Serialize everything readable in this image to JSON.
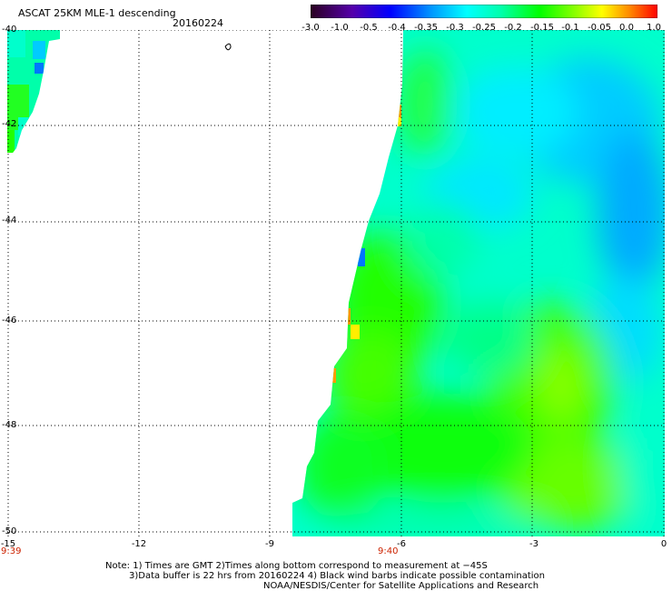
{
  "header": {
    "title": "ASCAT 25KM MLE-1 descending",
    "date": "20160224"
  },
  "colorbar": {
    "labels": [
      "-3.0",
      "-1.0",
      "-0.5",
      "-0.4",
      "-0.35",
      "-0.3",
      "-0.25",
      "-0.2",
      "-0.15",
      "-0.1",
      "-0.05",
      "0.0",
      "1.0"
    ]
  },
  "map": {
    "lat_labels": [
      "-40",
      "-42",
      "-44",
      "-46",
      "-48",
      "-50"
    ],
    "lon_labels": [
      "-15",
      "-12",
      "-9",
      "-6",
      "-3",
      "0"
    ],
    "time_labels": [
      "9:39",
      "9:40"
    ],
    "colors": {
      "cyan": "#00ffee",
      "cyan_blue": "#00ccff",
      "blue": "#0077ff",
      "aqua_green": "#00ffaa",
      "green": "#00ff44",
      "bright_green": "#22ff00",
      "lime": "#77ff00",
      "yellow": "#ffee00",
      "orange": "#ff9900"
    }
  },
  "notes": {
    "line1": "Note: 1) Times are GMT 2)Times along bottom correspond to measurement at −45S",
    "line2": "3)Data buffer is 22 hrs from 20160224 4) Black wind barbs indicate possible contamination",
    "line3": "NOAA/NESDIS/Center for Satellite Applications and Research"
  }
}
